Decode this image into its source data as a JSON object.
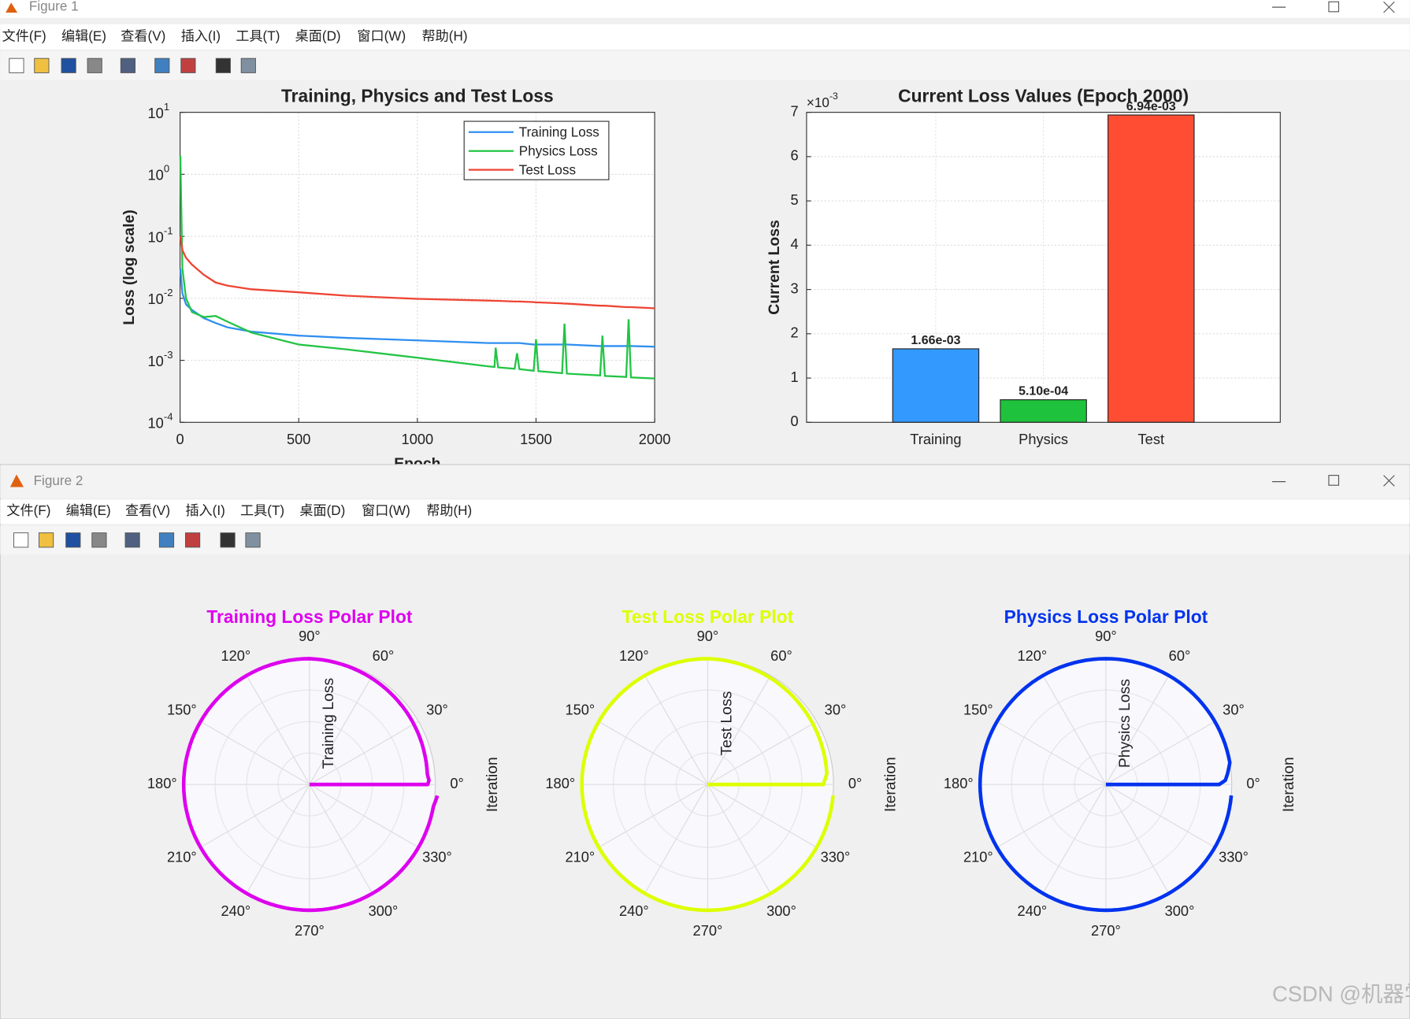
{
  "windows": [
    {
      "title": "Figure 1",
      "menu": [
        "文件(F)",
        "编辑(E)",
        "查看(V)",
        "插入(I)",
        "工具(T)",
        "桌面(D)",
        "窗口(W)",
        "帮助(H)"
      ]
    },
    {
      "title": "Figure 2",
      "menu": [
        "文件(F)",
        "编辑(E)",
        "查看(V)",
        "插入(I)",
        "工具(T)",
        "桌面(D)",
        "窗口(W)",
        "帮助(H)"
      ]
    }
  ],
  "watermark": "CSDN @机器学习之心",
  "chart_data": [
    {
      "type": "line",
      "title": "Training, Physics and Test Loss",
      "xlabel": "Epoch",
      "ylabel": "Loss (log scale)",
      "log_y": true,
      "grid": true,
      "legend": "northeast",
      "xlim": [
        0,
        2000
      ],
      "xticks": [
        0,
        500,
        1000,
        1500,
        2000
      ],
      "ylim": [
        0.0001,
        10
      ],
      "yticks": [
        {
          "value": 0.0001,
          "label": "10",
          "exp": "-4"
        },
        {
          "value": 0.001,
          "label": "10",
          "exp": "-3"
        },
        {
          "value": 0.01,
          "label": "10",
          "exp": "-2"
        },
        {
          "value": 0.1,
          "label": "10",
          "exp": "-1"
        },
        {
          "value": 1,
          "label": "10",
          "exp": "0"
        },
        {
          "value": 10,
          "label": "10",
          "exp": "1"
        }
      ],
      "x": [
        1,
        10,
        25,
        50,
        100,
        150,
        200,
        300,
        500,
        700,
        1000,
        1300,
        1325,
        1330,
        1340,
        1410,
        1420,
        1430,
        1490,
        1500,
        1510,
        1610,
        1620,
        1630,
        1770,
        1780,
        1790,
        1880,
        1890,
        1900,
        2000
      ],
      "series": [
        {
          "name": "Training Loss",
          "color": "#2f8ff0",
          "values": [
            0.03,
            0.012,
            0.008,
            0.0065,
            0.0048,
            0.004,
            0.0034,
            0.0029,
            0.0025,
            0.0023,
            0.0021,
            0.0019,
            0.0019,
            0.0019,
            0.0019,
            0.0019,
            0.0019,
            0.0019,
            0.0018,
            0.0018,
            0.0018,
            0.0018,
            0.0018,
            0.0018,
            0.0017,
            0.0017,
            0.0017,
            0.0017,
            0.0017,
            0.0017,
            0.00166
          ]
        },
        {
          "name": "Physics Loss",
          "color": "#22c444",
          "values": [
            2,
            0.03,
            0.01,
            0.006,
            0.005,
            0.0052,
            0.0042,
            0.0028,
            0.0018,
            0.0015,
            0.0011,
            0.0008,
            0.00078,
            0.0016,
            0.00077,
            0.00073,
            0.0013,
            0.00072,
            0.00068,
            0.0022,
            0.00067,
            0.00062,
            0.0039,
            0.00061,
            0.00057,
            0.0025,
            0.00056,
            0.00054,
            0.0046,
            0.00053,
            0.00051
          ]
        },
        {
          "name": "Test Loss",
          "color": "#ee4433",
          "values": [
            0.1,
            0.06,
            0.045,
            0.035,
            0.024,
            0.018,
            0.016,
            0.014,
            0.0125,
            0.011,
            0.0098,
            0.0092,
            0.0091,
            0.0091,
            0.0091,
            0.0089,
            0.0089,
            0.0089,
            0.0087,
            0.0086,
            0.0086,
            0.0083,
            0.0082,
            0.0082,
            0.0076,
            0.0076,
            0.0076,
            0.0072,
            0.0072,
            0.0072,
            0.0069
          ]
        }
      ]
    },
    {
      "type": "bar",
      "title": "Current Loss Values (Epoch 2000)",
      "ylabel": "Current Loss",
      "grid": true,
      "yscale_label": "×10",
      "yscale_exp": "-3",
      "categories": [
        "Training",
        "Physics",
        "Test"
      ],
      "values": [
        1.66,
        0.51,
        6.94
      ],
      "value_labels": [
        "1.66e-03",
        "5.10e-04",
        "6.94e-03"
      ],
      "colors": [
        "#3399ff",
        "#1ec23c",
        "#ff4d33"
      ],
      "ylim": [
        0,
        7
      ],
      "yticks": [
        0,
        1,
        2,
        3,
        4,
        5,
        6,
        7
      ]
    },
    {
      "type": "polar",
      "title": "Training Loss Polar Plot",
      "rlabel": "Training Loss",
      "side_label": "Iteration",
      "color": "#dd00ee",
      "rlim": [
        0,
        1
      ],
      "thetaticks": [
        {
          "value": 0,
          "label": "0°"
        },
        {
          "value": 30,
          "label": "30°"
        },
        {
          "value": 60,
          "label": "60°"
        },
        {
          "value": 90,
          "label": "90°"
        },
        {
          "value": 120,
          "label": "120°"
        },
        {
          "value": 150,
          "label": "150°"
        },
        {
          "value": 180,
          "label": "180°"
        },
        {
          "value": 210,
          "label": "210°"
        },
        {
          "value": 240,
          "label": "240°"
        },
        {
          "value": 270,
          "label": "270°"
        },
        {
          "value": 300,
          "label": "300°"
        },
        {
          "value": 330,
          "label": "330°"
        }
      ],
      "theta": [
        0,
        0,
        0,
        2,
        5,
        90,
        180,
        270,
        350,
        355
      ],
      "r": [
        0,
        0.6,
        0.94,
        0.95,
        0.94,
        1,
        1,
        1,
        1,
        1.02
      ]
    },
    {
      "type": "polar",
      "title": "Test Loss Polar Plot",
      "rlabel": "Test Loss",
      "side_label": "Iteration",
      "color": "#ddff00",
      "rlim": [
        0,
        1
      ],
      "thetaticks": [
        {
          "value": 0,
          "label": "0°"
        },
        {
          "value": 30,
          "label": "30°"
        },
        {
          "value": 60,
          "label": "60°"
        },
        {
          "value": 90,
          "label": "90°"
        },
        {
          "value": 120,
          "label": "120°"
        },
        {
          "value": 150,
          "label": "150°"
        },
        {
          "value": 180,
          "label": "180°"
        },
        {
          "value": 210,
          "label": "210°"
        },
        {
          "value": 240,
          "label": "240°"
        },
        {
          "value": 270,
          "label": "270°"
        },
        {
          "value": 300,
          "label": "300°"
        },
        {
          "value": 330,
          "label": "330°"
        }
      ],
      "theta": [
        0,
        0,
        0,
        2,
        5,
        90,
        180,
        270,
        355
      ],
      "r": [
        0,
        0.6,
        0.92,
        0.93,
        0.95,
        1,
        1,
        1,
        1
      ]
    },
    {
      "type": "polar",
      "title": "Physics Loss Polar Plot",
      "rlabel": "Physics Loss",
      "side_label": "Iteration",
      "color": "#0033ee",
      "rlim": [
        0,
        1
      ],
      "thetaticks": [
        {
          "value": 0,
          "label": "0°"
        },
        {
          "value": 30,
          "label": "30°"
        },
        {
          "value": 60,
          "label": "60°"
        },
        {
          "value": 90,
          "label": "90°"
        },
        {
          "value": 120,
          "label": "120°"
        },
        {
          "value": 150,
          "label": "150°"
        },
        {
          "value": 180,
          "label": "180°"
        },
        {
          "value": 210,
          "label": "210°"
        },
        {
          "value": 240,
          "label": "240°"
        },
        {
          "value": 270,
          "label": "270°"
        },
        {
          "value": 300,
          "label": "300°"
        },
        {
          "value": 330,
          "label": "330°"
        }
      ],
      "theta": [
        0,
        0,
        2,
        5,
        10,
        90,
        180,
        270,
        355
      ],
      "r": [
        0,
        0.9,
        0.95,
        0.97,
        1,
        1,
        1,
        1,
        1
      ]
    }
  ]
}
